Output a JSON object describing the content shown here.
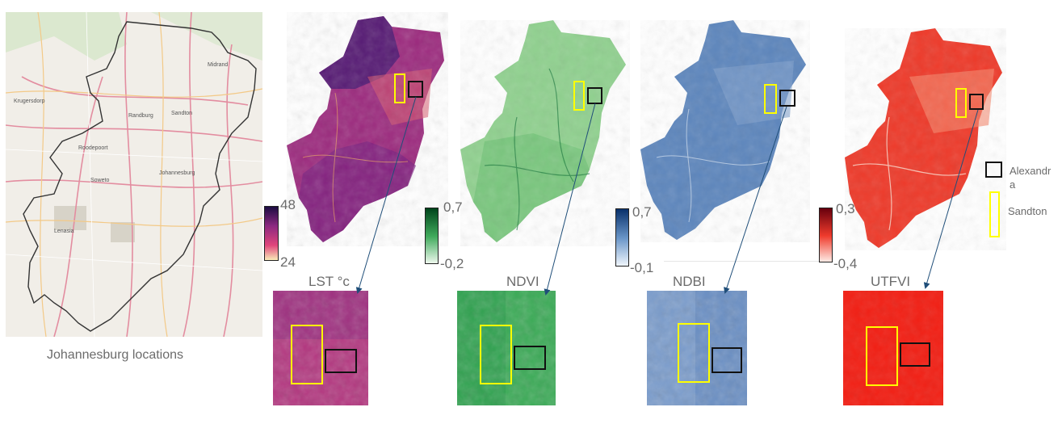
{
  "colors": {
    "lst_low": "#fcfdbf",
    "lst_mid": "#e0457b",
    "lst_high": "#1b0c41",
    "ndvi_low": "#f7fcf5",
    "ndvi_high": "#00441b",
    "ndbi_low": "#f7fbff",
    "ndbi_high": "#08306b",
    "utfvi_low": "#fff5f0",
    "utfvi_high": "#67000d",
    "alexandra_box": "#111111",
    "sandton_box": "#ffff00",
    "arrow": "#1f4e79"
  },
  "locator_map": {
    "caption": "Johannesburg locations",
    "place_labels": [
      "Krugersdorp",
      "Randburg",
      "Sandton",
      "Roodepoort",
      "Johannesburg",
      "Soweto",
      "Lenasia",
      "Midrand"
    ]
  },
  "panels": [
    {
      "id": "lst",
      "title": "LST °c",
      "max": "48",
      "min": "24"
    },
    {
      "id": "ndvi",
      "title": "NDVI",
      "max": "0,7",
      "min": "-0,2"
    },
    {
      "id": "ndbi",
      "title": "NDBI",
      "max": "0,7",
      "min": "-0,1"
    },
    {
      "id": "utfvi",
      "title": "UTFVI",
      "max": "0,3",
      "min": "-0,4"
    }
  ],
  "legend": {
    "alexandra_line1": "Alexandr",
    "alexandra_line2": "a",
    "sandton": "Sandton"
  }
}
